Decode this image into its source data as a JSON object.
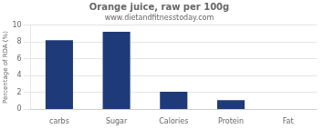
{
  "chart_data": {
    "type": "bar",
    "title": "Orange juice, raw per 100g",
    "subtitle": "www.dietandfitnesstoday.com",
    "categories": [
      "carbs",
      "Sugar",
      "Calories",
      "Protein",
      "Fat"
    ],
    "values": [
      8.2,
      9.2,
      2.1,
      1.1,
      0.0
    ],
    "color": "#1e3a78",
    "ylabel": "Percentage of RDA (%)",
    "ylim": [
      0,
      10
    ],
    "yticks": [
      0,
      2,
      4,
      6,
      8,
      10
    ],
    "grid": true
  }
}
